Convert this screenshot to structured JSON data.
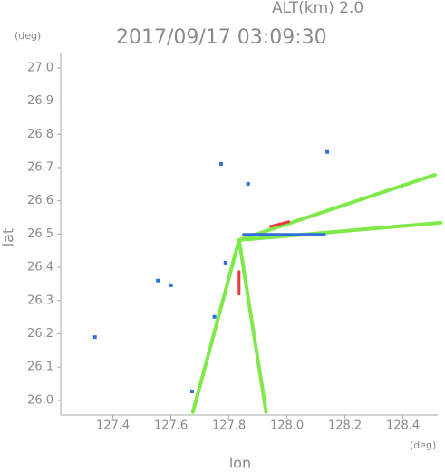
{
  "chart_data": {
    "type": "scatter",
    "title": "2017/09/17 03:09:30",
    "subtitle": "ALT(km) 2.0",
    "x_label": "lon",
    "y_label": "lat",
    "x_unit": "(deg)",
    "y_unit": "(deg)",
    "xlim": [
      127.22,
      128.52
    ],
    "ylim": [
      25.956,
      27.046
    ],
    "xticks": [
      {
        "value": 127.4,
        "label": "127.4"
      },
      {
        "value": 127.6,
        "label": "127.6"
      },
      {
        "value": 127.8,
        "label": "127.8"
      },
      {
        "value": 128.0,
        "label": "128.0"
      },
      {
        "value": 128.2,
        "label": "128.2"
      },
      {
        "value": 128.4,
        "label": "128.4"
      }
    ],
    "yticks": [
      {
        "value": 26.0,
        "label": "26.0"
      },
      26.1,
      26.2,
      26.3,
      26.4,
      26.5,
      26.6,
      26.7,
      26.8,
      26.9,
      {
        "value": 27.0,
        "label": "27.0"
      }
    ],
    "series": [
      {
        "color": "#7fe84a",
        "x": [
          127.835,
          128.51
        ],
        "y": [
          26.482,
          26.678
        ]
      },
      {
        "color": "#7fe84a",
        "x": [
          127.835,
          128.53
        ],
        "y": [
          26.482,
          26.534
        ]
      },
      {
        "color": "#7fe84a",
        "x": [
          127.835,
          127.676
        ],
        "y": [
          26.482,
          25.965
        ]
      },
      {
        "color": "#7fe84a",
        "x": [
          127.835,
          127.928
        ],
        "y": [
          26.482,
          25.965
        ]
      },
      {
        "color": "#e83a3a",
        "x": [
          127.943,
          128.006
        ],
        "y": [
          26.523,
          26.537
        ]
      },
      {
        "color": "#e83a3a",
        "x": [
          127.835,
          127.835
        ],
        "y": [
          26.387,
          26.319
        ]
      },
      {
        "color": "#2f6fe0",
        "x": [
          127.85,
          128.13
        ],
        "y": [
          26.499,
          26.499
        ]
      },
      {
        "color": "#2f6fe0",
        "x": [
          127.75,
          127.788
        ],
        "y": [
          26.251,
          26.414
        ]
      },
      {
        "color": "#2f6fe0",
        "x": [
          127.555,
          127.6
        ],
        "y": [
          26.36,
          26.346
        ]
      },
      {
        "color": "#2f6fe0",
        "x": [
          127.338
        ],
        "y": [
          26.19
        ]
      },
      {
        "color": "#2f6fe0",
        "x": [
          127.673
        ],
        "y": [
          26.027
        ]
      },
      {
        "color": "#2f6fe0",
        "x": [
          127.773,
          128.139,
          127.866
        ],
        "y": [
          26.711,
          26.747,
          26.651
        ]
      }
    ]
  }
}
